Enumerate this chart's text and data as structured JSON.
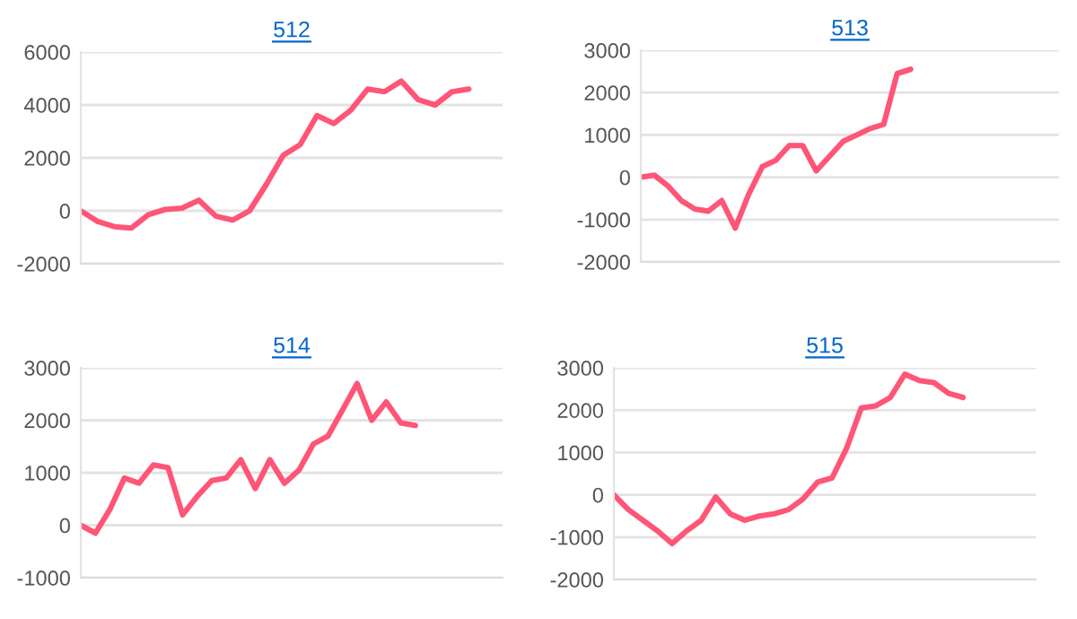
{
  "chart_data": [
    {
      "type": "line",
      "title": "512",
      "categories": [
        null,
        null,
        null,
        null,
        null,
        null,
        null,
        null,
        null,
        null,
        null,
        null,
        null,
        null,
        null,
        null,
        null,
        null,
        null,
        null,
        null,
        null,
        null,
        null,
        null,
        null
      ],
      "ylim": [
        -2000,
        6000
      ],
      "yticks": [
        -2000,
        0,
        2000,
        4000,
        6000
      ],
      "grid": "y",
      "tick_labels": "y",
      "series": [
        {
          "color": "#ff5577",
          "values": [
            0,
            -400,
            -600,
            -650,
            -150,
            50,
            100,
            400,
            -200,
            -350,
            0,
            1000,
            2100,
            2500,
            3600,
            3300,
            3800,
            4600,
            4500,
            4900,
            4200,
            4000,
            4500,
            4600,
            null,
            null
          ]
        }
      ]
    },
    {
      "type": "line",
      "title": "513",
      "categories": [
        null,
        null,
        null,
        null,
        null,
        null,
        null,
        null,
        null,
        null,
        null,
        null,
        null,
        null,
        null,
        null,
        null,
        null,
        null,
        null,
        null,
        null,
        null,
        null,
        null,
        null,
        null,
        null,
        null,
        null,
        null,
        null
      ],
      "ylim": [
        -2000,
        3000
      ],
      "yticks": [
        -2000,
        -1000,
        0,
        1000,
        2000,
        3000
      ],
      "grid": "y",
      "tick_labels": "y",
      "series": [
        {
          "color": "#ff5577",
          "values": [
            0,
            50,
            -200,
            -550,
            -750,
            -800,
            -550,
            -1200,
            -400,
            250,
            400,
            750,
            750,
            150,
            500,
            850,
            1000,
            1150,
            1250,
            2450,
            2550,
            null,
            null,
            null,
            null,
            null,
            null,
            null,
            null,
            null,
            null,
            null
          ]
        }
      ]
    },
    {
      "type": "line",
      "title": "514",
      "categories": [
        null,
        null,
        null,
        null,
        null,
        null,
        null,
        null,
        null,
        null,
        null,
        null,
        null,
        null,
        null,
        null,
        null,
        null,
        null,
        null,
        null,
        null,
        null,
        null,
        null,
        null,
        null,
        null,
        null,
        null
      ],
      "ylim": [
        -1000,
        3000
      ],
      "yticks": [
        -1000,
        0,
        1000,
        2000,
        3000
      ],
      "grid": "y",
      "tick_labels": "y",
      "series": [
        {
          "color": "#ff5577",
          "values": [
            0,
            -150,
            300,
            900,
            800,
            1150,
            1100,
            200,
            550,
            850,
            900,
            1250,
            700,
            1250,
            800,
            1050,
            1550,
            1700,
            2200,
            2700,
            2000,
            2350,
            1950,
            1900,
            null,
            null,
            null,
            null,
            null,
            null
          ]
        }
      ]
    },
    {
      "type": "line",
      "title": "515",
      "categories": [
        null,
        null,
        null,
        null,
        null,
        null,
        null,
        null,
        null,
        null,
        null,
        null,
        null,
        null,
        null,
        null,
        null,
        null,
        null,
        null,
        null,
        null,
        null,
        null,
        null,
        null,
        null,
        null,
        null,
        null
      ],
      "ylim": [
        -2000,
        3000
      ],
      "yticks": [
        -2000,
        -1000,
        0,
        1000,
        2000,
        3000
      ],
      "grid": "y",
      "tick_labels": "y",
      "series": [
        {
          "color": "#ff5577",
          "values": [
            0,
            -350,
            -600,
            -850,
            -1150,
            -850,
            -600,
            -50,
            -450,
            -600,
            -500,
            -450,
            -350,
            -100,
            300,
            400,
            1100,
            2050,
            2100,
            2300,
            2850,
            2700,
            2650,
            2400,
            2300,
            null,
            null,
            null,
            null,
            null
          ]
        }
      ]
    }
  ]
}
